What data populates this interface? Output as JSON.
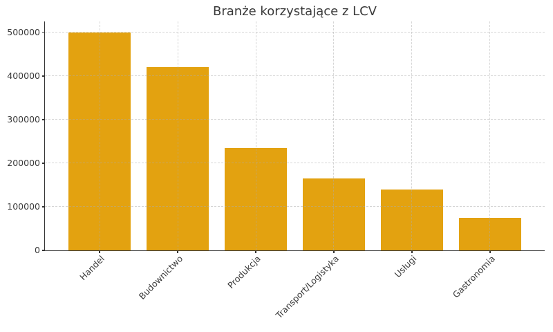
{
  "chart_data": {
    "type": "bar",
    "title": "Branże korzystające z LCV",
    "categories": [
      "Handel",
      "Budownictwo",
      "Produkcja",
      "Transport/Logistyka",
      "Usługi",
      "Gastronomia"
    ],
    "values": [
      500000,
      420000,
      235000,
      165000,
      140000,
      75000
    ],
    "xlabel": "",
    "ylabel": "",
    "ylim": [
      0,
      525000
    ],
    "yticks": [
      0,
      100000,
      200000,
      300000,
      400000,
      500000
    ],
    "ytick_labels": [
      "0",
      "100000",
      "200000",
      "300000",
      "400000",
      "500000"
    ],
    "xtick_rotation_deg": 45,
    "grid": true,
    "grid_style": "dashed",
    "legend": "none",
    "bar_color": "#E3A210",
    "background": "#FFFFFF",
    "axis_color": "#333333",
    "text_color": "#3A3A3A",
    "grid_color": "#D8D8D8"
  }
}
